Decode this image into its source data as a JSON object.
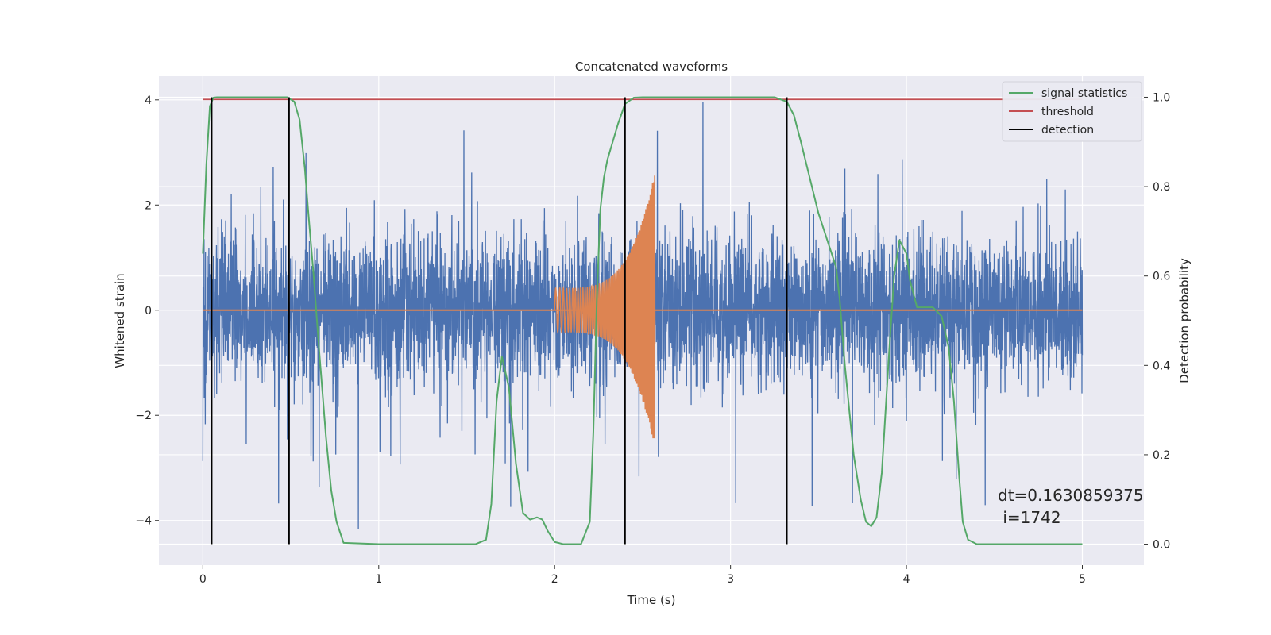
{
  "chart_data": {
    "type": "line",
    "title": "Concatenated waveforms",
    "xlabel": "Time (s)",
    "ylabel": "Whitened strain",
    "y2label": "Detection probability",
    "xlim": [
      -0.25,
      5.35
    ],
    "ylim": [
      -4.85,
      4.45
    ],
    "y2lim": [
      -0.047,
      1.047
    ],
    "xticks": [
      0,
      1,
      2,
      3,
      4,
      5
    ],
    "xtick_labels": [
      "0",
      "1",
      "2",
      "3",
      "4",
      "5"
    ],
    "yticks": [
      -4,
      -2,
      0,
      2,
      4
    ],
    "ytick_labels": [
      "−4",
      "−2",
      "0",
      "2",
      "4"
    ],
    "y2ticks": [
      0.0,
      0.2,
      0.4,
      0.6,
      0.8,
      1.0
    ],
    "y2tick_labels": [
      "0.0",
      "0.2",
      "0.4",
      "0.6",
      "0.8",
      "1.0"
    ],
    "grid": true,
    "legend_position": "top-right",
    "series": [
      {
        "name": "signal statistics",
        "color": "#55a868",
        "axis": "right",
        "x": [
          0.0,
          0.02,
          0.04,
          0.06,
          0.08,
          0.1,
          0.2,
          0.3,
          0.4,
          0.48,
          0.52,
          0.55,
          0.58,
          0.6,
          0.63,
          0.66,
          0.7,
          0.73,
          0.76,
          0.8,
          1.0,
          1.3,
          1.55,
          1.61,
          1.64,
          1.67,
          1.7,
          1.74,
          1.78,
          1.82,
          1.86,
          1.9,
          1.93,
          1.96,
          2.0,
          2.05,
          2.15,
          2.2,
          2.22,
          2.24,
          2.26,
          2.28,
          2.3,
          2.33,
          2.36,
          2.4,
          2.45,
          2.5,
          2.6,
          2.8,
          3.0,
          3.25,
          3.32,
          3.36,
          3.4,
          3.45,
          3.5,
          3.55,
          3.6,
          3.62,
          3.65,
          3.7,
          3.74,
          3.77,
          3.8,
          3.83,
          3.86,
          3.9,
          3.93,
          3.96,
          4.0,
          4.02,
          4.06,
          4.1,
          4.15,
          4.2,
          4.24,
          4.27,
          4.3,
          4.32,
          4.35,
          4.4,
          4.6,
          5.0
        ],
        "values": [
          0.65,
          0.85,
          0.98,
          0.999,
          1.0,
          1.0,
          1.0,
          1.0,
          1.0,
          1.0,
          0.99,
          0.95,
          0.84,
          0.74,
          0.6,
          0.44,
          0.24,
          0.12,
          0.05,
          0.003,
          0.0,
          0.0,
          0.0,
          0.01,
          0.09,
          0.32,
          0.42,
          0.35,
          0.18,
          0.07,
          0.055,
          0.06,
          0.055,
          0.03,
          0.005,
          0.0,
          0.0,
          0.05,
          0.25,
          0.55,
          0.75,
          0.82,
          0.86,
          0.9,
          0.94,
          0.985,
          0.999,
          1.0,
          1.0,
          1.0,
          1.0,
          1.0,
          0.99,
          0.96,
          0.9,
          0.82,
          0.74,
          0.68,
          0.62,
          0.55,
          0.4,
          0.2,
          0.1,
          0.05,
          0.04,
          0.06,
          0.16,
          0.42,
          0.6,
          0.68,
          0.65,
          0.59,
          0.53,
          0.53,
          0.53,
          0.51,
          0.44,
          0.32,
          0.15,
          0.05,
          0.01,
          0.0,
          0.0,
          0.0
        ]
      },
      {
        "name": "threshold",
        "color": "#c44e52",
        "axis": "right",
        "x": [
          0.0,
          5.0
        ],
        "values": [
          0.995,
          0.995
        ]
      },
      {
        "name": "detection",
        "color": "#000000",
        "axis": "right",
        "type": "vlines",
        "x": [
          0.05,
          0.49,
          2.4,
          3.32
        ],
        "ymin": 0.0,
        "ymax": 1.0
      },
      {
        "color": "#4c72b0",
        "axis": "left",
        "type": "noise",
        "x_range": [
          0.0,
          5.0
        ],
        "amplitude_range": [
          -4.4,
          4.05
        ]
      },
      {
        "color": "#dd8452",
        "axis": "left",
        "type": "chirp",
        "x_range": [
          2.0,
          2.57
        ],
        "peak": [
          2.63,
          -2.2
        ]
      },
      {
        "color": "#dd8452",
        "axis": "left",
        "type": "baseline",
        "x": [
          0.0,
          5.0
        ],
        "values": [
          0,
          0
        ]
      }
    ],
    "annotation": {
      "line1": "dt=0.1630859375",
      "line2": " i=1742",
      "x": 4.5
    }
  }
}
